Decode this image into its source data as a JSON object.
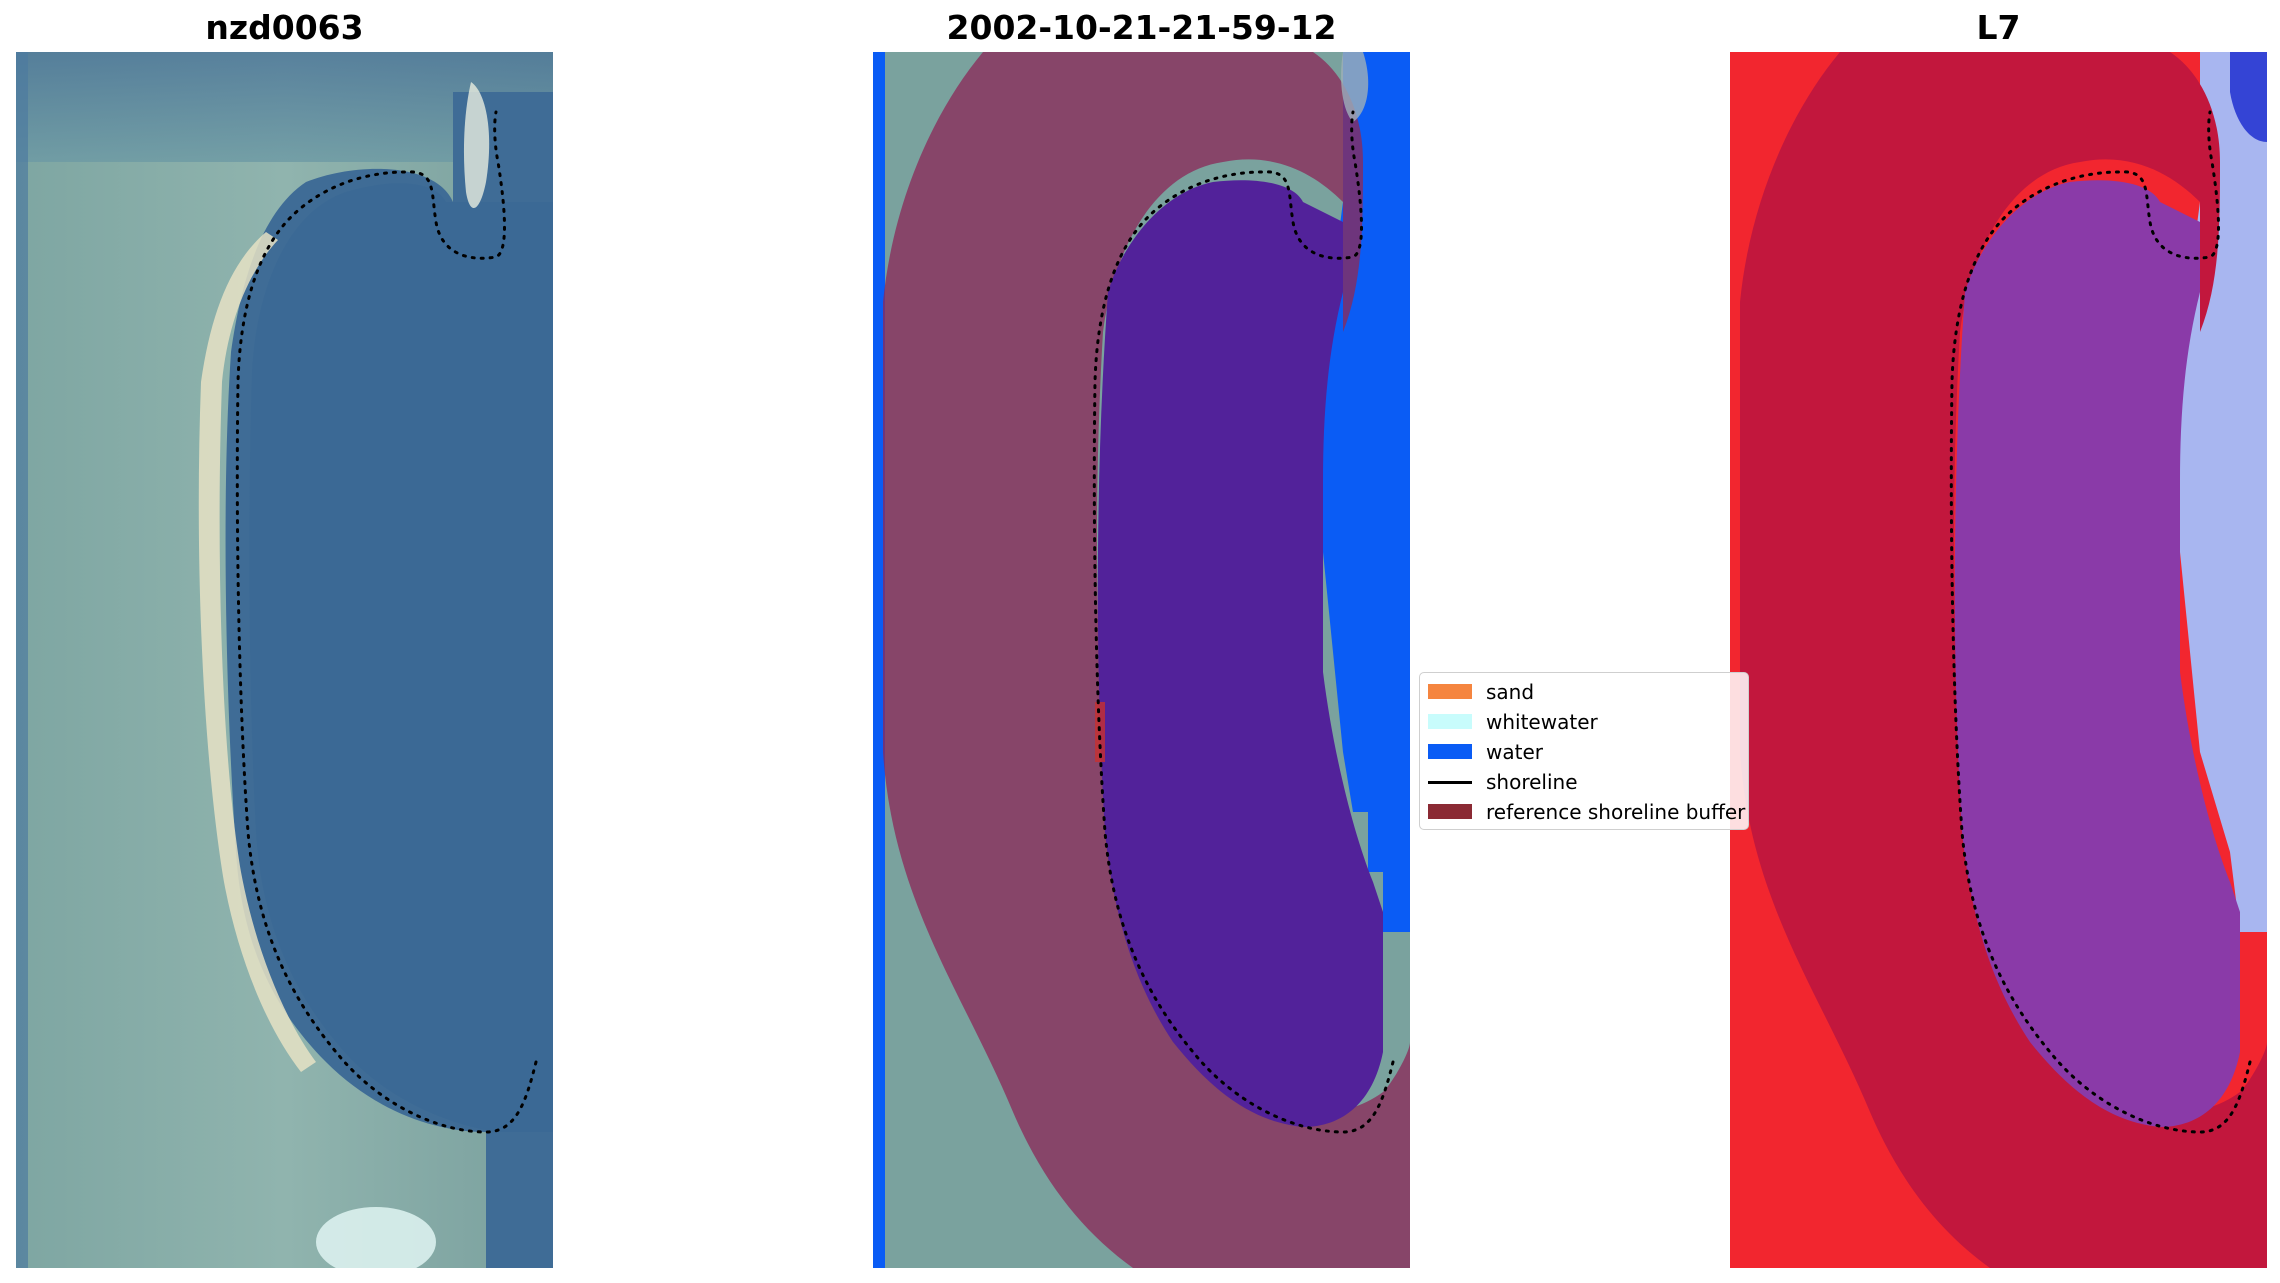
{
  "panels": [
    {
      "title": "nzd0063"
    },
    {
      "title": "2002-10-21-21-59-12"
    },
    {
      "title": "L7"
    }
  ],
  "legend": {
    "entries": [
      {
        "label": "sand",
        "color": "#f5853f",
        "kind": "patch"
      },
      {
        "label": "whitewater",
        "color": "#c8fcfc",
        "kind": "patch"
      },
      {
        "label": "water",
        "color": "#0a5cf5",
        "kind": "patch"
      },
      {
        "label": "shoreline",
        "color": "#000000",
        "kind": "line"
      },
      {
        "label": "reference shoreline buffer",
        "color": "#8b2a34",
        "kind": "patch"
      }
    ]
  },
  "colors": {
    "imagery_water": "#3f6c96",
    "imagery_land": "#88aeaa",
    "imagery_sand": "#e6e2c4",
    "classified_water": "#0a5cf5",
    "buffer_overlay": "#8b2a5a",
    "buffer_water": "#52229a",
    "index_land": "#f2262f",
    "index_buffer": "#c2173d",
    "index_water_buffer": "#8a3aa8",
    "index_water": "#a8b6f0",
    "shoreline": "#000000"
  }
}
